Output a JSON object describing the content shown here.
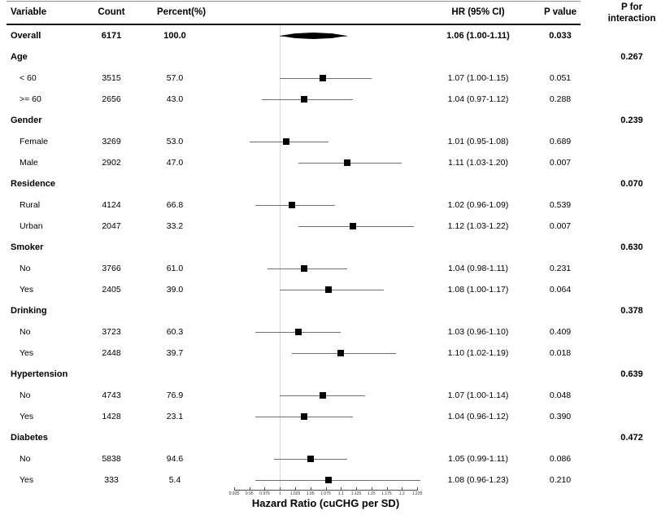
{
  "chart_data": {
    "type": "scatter",
    "variant": "forest-plot",
    "columns": {
      "variable": "Variable",
      "count": "Count",
      "percent": "Percent(%)",
      "hr_ci": "HR (95% CI)",
      "p_value": "P value",
      "p_interaction_line1": "P for",
      "p_interaction_line2": "interaction"
    },
    "xlabel": "Hazard Ratio (cuCHG per SD)",
    "axis": {
      "min": 0.925,
      "max": 1.225,
      "ref": 1,
      "ticks": [
        "0.925",
        "0.95",
        "0.975",
        "1",
        "1.025",
        "1.05",
        "1.075",
        "1.1",
        "1.125",
        "1.15",
        "1.175",
        "1.2",
        "1.225"
      ]
    },
    "rows": [
      {
        "type": "overall",
        "label": "Overall",
        "count": "6171",
        "percent": "100.0",
        "hr": 1.06,
        "lo": 1.0,
        "hi": 1.11,
        "hr_text": "1.06 (1.00-1.11)",
        "p": "0.033",
        "marker": "diamond"
      },
      {
        "type": "group",
        "label": "Age",
        "p_interaction": "0.267"
      },
      {
        "type": "item",
        "label": "< 60",
        "count": "3515",
        "percent": "57.0",
        "hr": 1.07,
        "lo": 1.0,
        "hi": 1.15,
        "hr_text": "1.07 (1.00-1.15)",
        "p": "0.051",
        "marker": "square"
      },
      {
        "type": "item",
        "label": ">= 60",
        "count": "2656",
        "percent": "43.0",
        "hr": 1.04,
        "lo": 0.97,
        "hi": 1.12,
        "hr_text": "1.04 (0.97-1.12)",
        "p": "0.288",
        "marker": "square"
      },
      {
        "type": "group",
        "label": "Gender",
        "p_interaction": "0.239"
      },
      {
        "type": "item",
        "label": "Female",
        "count": "3269",
        "percent": "53.0",
        "hr": 1.01,
        "lo": 0.95,
        "hi": 1.08,
        "hr_text": "1.01 (0.95-1.08)",
        "p": "0.689",
        "marker": "square"
      },
      {
        "type": "item",
        "label": "Male",
        "count": "2902",
        "percent": "47.0",
        "hr": 1.11,
        "lo": 1.03,
        "hi": 1.2,
        "hr_text": "1.11 (1.03-1.20)",
        "p": "0.007",
        "marker": "square"
      },
      {
        "type": "group",
        "label": "Residence",
        "p_interaction": "0.070"
      },
      {
        "type": "item",
        "label": "Rural",
        "count": "4124",
        "percent": "66.8",
        "hr": 1.02,
        "lo": 0.96,
        "hi": 1.09,
        "hr_text": "1.02 (0.96-1.09)",
        "p": "0.539",
        "marker": "square"
      },
      {
        "type": "item",
        "label": "Urban",
        "count": "2047",
        "percent": "33.2",
        "hr": 1.12,
        "lo": 1.03,
        "hi": 1.22,
        "hr_text": "1.12 (1.03-1.22)",
        "p": "0.007",
        "marker": "square"
      },
      {
        "type": "group",
        "label": "Smoker",
        "p_interaction": "0.630"
      },
      {
        "type": "item",
        "label": "No",
        "count": "3766",
        "percent": "61.0",
        "hr": 1.04,
        "lo": 0.98,
        "hi": 1.11,
        "hr_text": "1.04 (0.98-1.11)",
        "p": "0.231",
        "marker": "square"
      },
      {
        "type": "item",
        "label": "Yes",
        "count": "2405",
        "percent": "39.0",
        "hr": 1.08,
        "lo": 1.0,
        "hi": 1.17,
        "hr_text": "1.08 (1.00-1.17)",
        "p": "0.064",
        "marker": "square"
      },
      {
        "type": "group",
        "label": "Drinking",
        "p_interaction": "0.378"
      },
      {
        "type": "item",
        "label": "No",
        "count": "3723",
        "percent": "60.3",
        "hr": 1.03,
        "lo": 0.96,
        "hi": 1.1,
        "hr_text": "1.03 (0.96-1.10)",
        "p": "0.409",
        "marker": "square"
      },
      {
        "type": "item",
        "label": "Yes",
        "count": "2448",
        "percent": "39.7",
        "hr": 1.1,
        "lo": 1.02,
        "hi": 1.19,
        "hr_text": "1.10 (1.02-1.19)",
        "p": "0.018",
        "marker": "square"
      },
      {
        "type": "group",
        "label": "Hypertension",
        "p_interaction": "0.639"
      },
      {
        "type": "item",
        "label": "No",
        "count": "4743",
        "percent": "76.9",
        "hr": 1.07,
        "lo": 1.0,
        "hi": 1.14,
        "hr_text": "1.07 (1.00-1.14)",
        "p": "0.048",
        "marker": "square"
      },
      {
        "type": "item",
        "label": "Yes",
        "count": "1428",
        "percent": "23.1",
        "hr": 1.04,
        "lo": 0.96,
        "hi": 1.12,
        "hr_text": "1.04 (0.96-1.12)",
        "p": "0.390",
        "marker": "square"
      },
      {
        "type": "group",
        "label": "Diabetes",
        "p_interaction": "0.472"
      },
      {
        "type": "item",
        "label": "No",
        "count": "5838",
        "percent": "94.6",
        "hr": 1.05,
        "lo": 0.99,
        "hi": 1.11,
        "hr_text": "1.05 (0.99-1.11)",
        "p": "0.086",
        "marker": "square"
      },
      {
        "type": "item",
        "label": "Yes",
        "count": "333",
        "percent": "5.4",
        "hr": 1.08,
        "lo": 0.96,
        "hi": 1.23,
        "hr_text": "1.08 (0.96-1.23)",
        "p": "0.210",
        "marker": "square"
      }
    ]
  }
}
